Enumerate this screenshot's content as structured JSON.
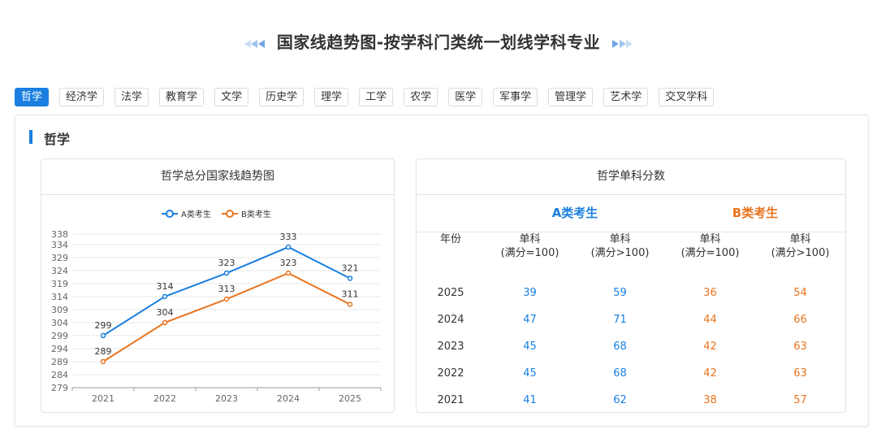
{
  "page_title": "国家线趋势图-按学科门类统一划线学科专业",
  "tabs": [
    "哲学",
    "经济学",
    "法学",
    "教育学",
    "文学",
    "历史学",
    "理学",
    "工学",
    "农学",
    "医学",
    "军事学",
    "管理学",
    "艺术学",
    "交叉学科"
  ],
  "active_tab": "哲学",
  "section_title": "哲学",
  "chart_card_title": "哲学总分国家线趋势图",
  "table_card_title": "哲学单科分数",
  "colors": {
    "accent": "#1a7fe0",
    "series_a": "#1a7fe0",
    "series_b": "#e8741e"
  },
  "chart_data": {
    "type": "line",
    "x": [
      "2021",
      "2022",
      "2023",
      "2024",
      "2025"
    ],
    "series": [
      {
        "name": "A类考生",
        "values": [
          299,
          314,
          323,
          333,
          321
        ]
      },
      {
        "name": "B类考生",
        "values": [
          289,
          304,
          313,
          323,
          311
        ]
      }
    ],
    "yticks": [
      279,
      284,
      289,
      294,
      299,
      304,
      309,
      314,
      319,
      324,
      329,
      334,
      338
    ],
    "ylim": [
      279,
      338
    ],
    "grid": true,
    "legend": "top-center"
  },
  "table": {
    "category_a": "A类考生",
    "category_b": "B类考生",
    "year_header": "年份",
    "col_headers": [
      {
        "line1": "单科",
        "line2": "(满分=100)"
      },
      {
        "line1": "单科",
        "line2": "(满分>100)"
      },
      {
        "line1": "单科",
        "line2": "(满分=100)"
      },
      {
        "line1": "单科",
        "line2": "(满分>100)"
      }
    ],
    "rows": [
      {
        "year": "2025",
        "a100": "39",
        "a_over": "59",
        "b100": "36",
        "b_over": "54"
      },
      {
        "year": "2024",
        "a100": "47",
        "a_over": "71",
        "b100": "44",
        "b_over": "66"
      },
      {
        "year": "2023",
        "a100": "45",
        "a_over": "68",
        "b100": "42",
        "b_over": "63"
      },
      {
        "year": "2022",
        "a100": "45",
        "a_over": "68",
        "b100": "42",
        "b_over": "63"
      },
      {
        "year": "2021",
        "a100": "41",
        "a_over": "62",
        "b100": "38",
        "b_over": "57"
      }
    ]
  }
}
